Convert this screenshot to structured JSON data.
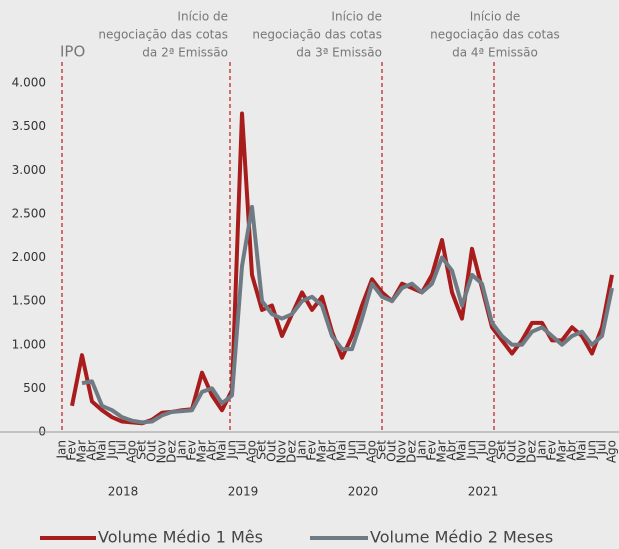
{
  "chart_data": {
    "type": "line",
    "categories": [
      "Jan",
      "Fev",
      "Mar",
      "Abr",
      "Mai",
      "Jun",
      "Jul",
      "Ago",
      "Set",
      "Out",
      "Nov",
      "Dez",
      "Jan",
      "Fev",
      "Mar",
      "Abr",
      "Mai",
      "Jun",
      "Jul",
      "Ago",
      "Set",
      "Out",
      "Nov",
      "Dez",
      "Jan",
      "Fev",
      "Mar",
      "Abr",
      "Mai",
      "Jun",
      "Jul",
      "Ago",
      "Set",
      "Out",
      "Nov",
      "Dez",
      "Jan",
      "Fev",
      "Mar",
      "Abr",
      "Mai",
      "Jun",
      "Jul",
      "Ago",
      "Set",
      "Out",
      "Nov",
      "Dez",
      "Jan",
      "Fev",
      "Mar",
      "Abr",
      "Mai",
      "Jun",
      "Jul",
      "Ago"
    ],
    "years": [
      "2018",
      "2019",
      "2020",
      "2021"
    ],
    "series": [
      {
        "name": "Volume Médio 1 Mês",
        "color": "#a81c1c",
        "values": [
          null,
          300,
          880,
          350,
          250,
          170,
          120,
          110,
          100,
          140,
          220,
          230,
          250,
          260,
          680,
          420,
          250,
          480,
          3650,
          1800,
          1400,
          1450,
          1100,
          1350,
          1600,
          1400,
          1550,
          1150,
          850,
          1100,
          1450,
          1750,
          1600,
          1500,
          1700,
          1650,
          1600,
          1800,
          2200,
          1600,
          1300,
          2100,
          1650,
          1200,
          1050,
          900,
          1050,
          1250,
          1250,
          1050,
          1050,
          1200,
          1100,
          900,
          1200,
          1800
        ]
      },
      {
        "name": "Volume Médio 2 Meses",
        "color": "#6f7b84",
        "values": [
          null,
          null,
          560,
          580,
          300,
          250,
          170,
          130,
          110,
          120,
          190,
          230,
          240,
          250,
          460,
          500,
          330,
          420,
          1900,
          2580,
          1500,
          1350,
          1300,
          1350,
          1500,
          1550,
          1450,
          1100,
          950,
          950,
          1300,
          1700,
          1550,
          1500,
          1650,
          1700,
          1600,
          1700,
          2000,
          1850,
          1450,
          1800,
          1700,
          1250,
          1100,
          1000,
          1000,
          1150,
          1200,
          1100,
          1000,
          1100,
          1150,
          1000,
          1100,
          1650
        ]
      }
    ],
    "ylim": [
      0,
      4000
    ],
    "yticks": [
      0,
      500,
      {
        "value": 1000,
        "label": "1.000"
      },
      {
        "value": 1500,
        "label": "1.500"
      },
      {
        "value": 2000,
        "label": "2.000"
      },
      {
        "value": 2500,
        "label": "2.500"
      },
      {
        "value": 3000,
        "label": "3.000"
      },
      {
        "value": 3500,
        "label": "3.500"
      },
      {
        "value": 4000,
        "label": "4.000"
      }
    ],
    "annotations": [
      {
        "lines": [
          "IPO"
        ]
      },
      {
        "lines": [
          "Início de",
          "negociação das cotas",
          "da 2ª Emissão"
        ]
      },
      {
        "lines": [
          "Início de",
          "negociação das cotas",
          "da 3ª Emissão"
        ]
      },
      {
        "lines": [
          "Início de",
          "negociação das cotas",
          "da 4ª Emissão"
        ]
      }
    ],
    "legend": "bottom",
    "grid": false
  }
}
